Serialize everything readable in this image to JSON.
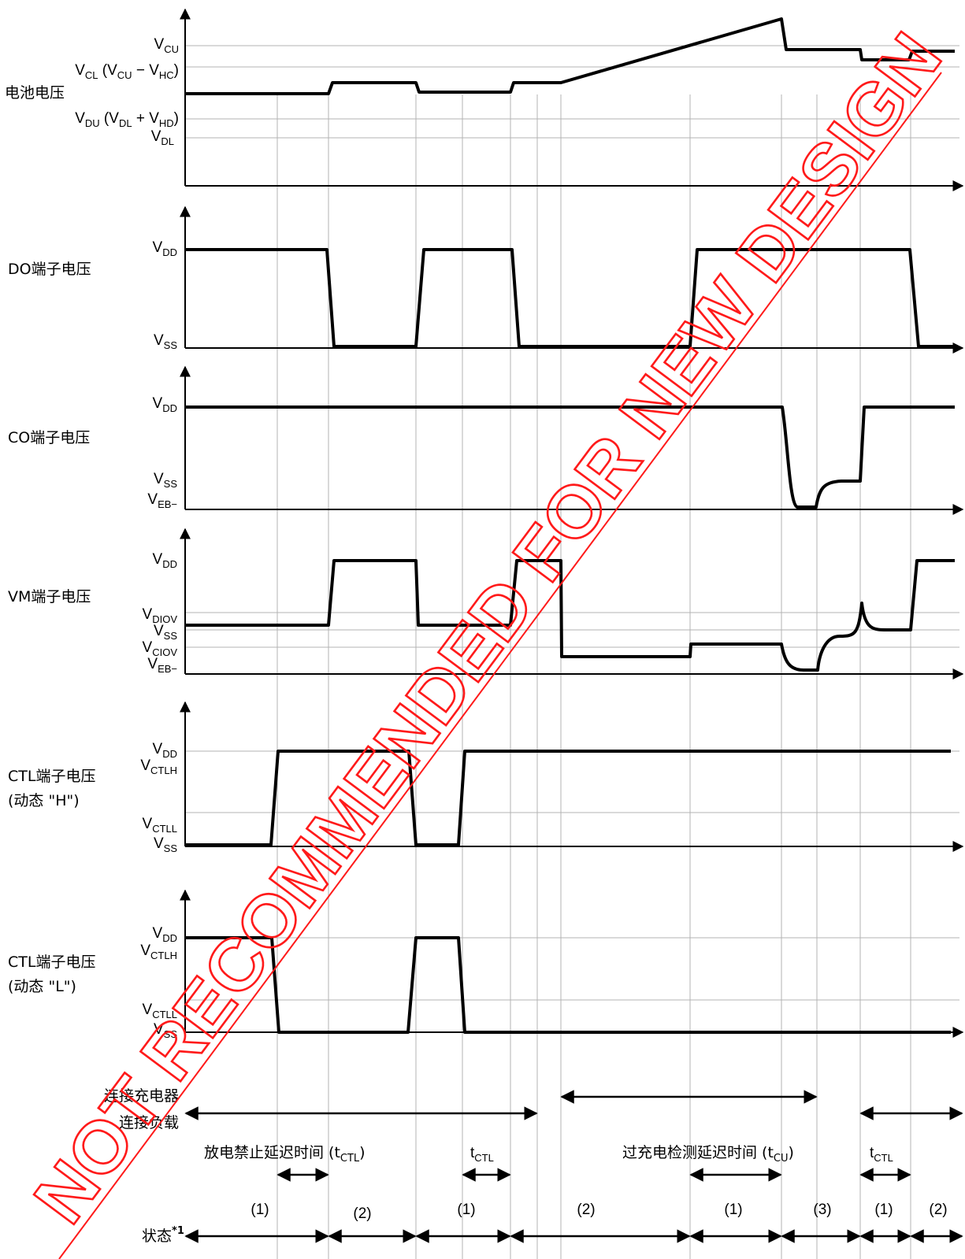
{
  "watermark": "NOT RECOMMENDED FOR NEW DESIGN",
  "colors": {
    "watermark": "#ff1a1a",
    "signal": "#000000",
    "grid": "#b3b3b3"
  },
  "panels": {
    "battery": {
      "title": "电池电压",
      "levels": {
        "vcu": {
          "main": "V",
          "sub": "CU"
        },
        "vcl": {
          "main": "V",
          "sub": "CL",
          "paren_open": " (V",
          "sub2": "CU",
          "mid": " − V",
          "sub3": "HC",
          "close": ")"
        },
        "vdu": {
          "main": "V",
          "sub": "DU",
          "paren_open": " (V",
          "sub2": "DL",
          "mid": " + V",
          "sub3": "HD",
          "close": ")"
        },
        "vdl": {
          "main": "V",
          "sub": "DL"
        }
      }
    },
    "do": {
      "title": "DO端子电压",
      "vdd": {
        "main": "V",
        "sub": "DD"
      },
      "vss": {
        "main": "V",
        "sub": "SS"
      }
    },
    "co": {
      "title": "CO端子电压",
      "vdd": {
        "main": "V",
        "sub": "DD"
      },
      "vss": {
        "main": "V",
        "sub": "SS"
      },
      "veb": {
        "main": "V",
        "sub": "EB−"
      }
    },
    "vm": {
      "title": "VM端子电压",
      "vdd": {
        "main": "V",
        "sub": "DD"
      },
      "vdiov": {
        "main": "V",
        "sub": "DIOV"
      },
      "vss": {
        "main": "V",
        "sub": "SS"
      },
      "vciov": {
        "main": "V",
        "sub": "CIOV"
      },
      "veb": {
        "main": "V",
        "sub": "EB−"
      }
    },
    "ctl_h": {
      "title": "CTL端子电压",
      "subtitle": "(动态 \"H\")",
      "vdd": {
        "main": "V",
        "sub": "DD"
      },
      "vctlh": {
        "main": "V",
        "sub": "CTLH"
      },
      "vctll": {
        "main": "V",
        "sub": "CTLL"
      },
      "vss": {
        "main": "V",
        "sub": "SS"
      }
    },
    "ctl_l": {
      "title": "CTL端子电压",
      "subtitle": "(动态 \"L\")",
      "vdd": {
        "main": "V",
        "sub": "DD"
      },
      "vctlh": {
        "main": "V",
        "sub": "CTLH"
      },
      "vctll": {
        "main": "V",
        "sub": "CTLL"
      },
      "vss": {
        "main": "V",
        "sub": "SS"
      }
    }
  },
  "bottom": {
    "charger": "连接充电器",
    "load": "连接负载",
    "delay_ctl": {
      "text": "放电禁止延迟时间 (t",
      "sub": "CTL",
      "close": ")"
    },
    "t_ctl": {
      "main": "t",
      "sub": "CTL"
    },
    "delay_cu": {
      "text": "过充电检测延迟时间 (t",
      "sub": "CU",
      "close": ")"
    },
    "state_label": "状态",
    "state_note": "*1",
    "states": [
      "(1)",
      "(2)",
      "(1)",
      "(2)",
      "(1)",
      "(3)",
      "(1)",
      "(2)"
    ]
  }
}
